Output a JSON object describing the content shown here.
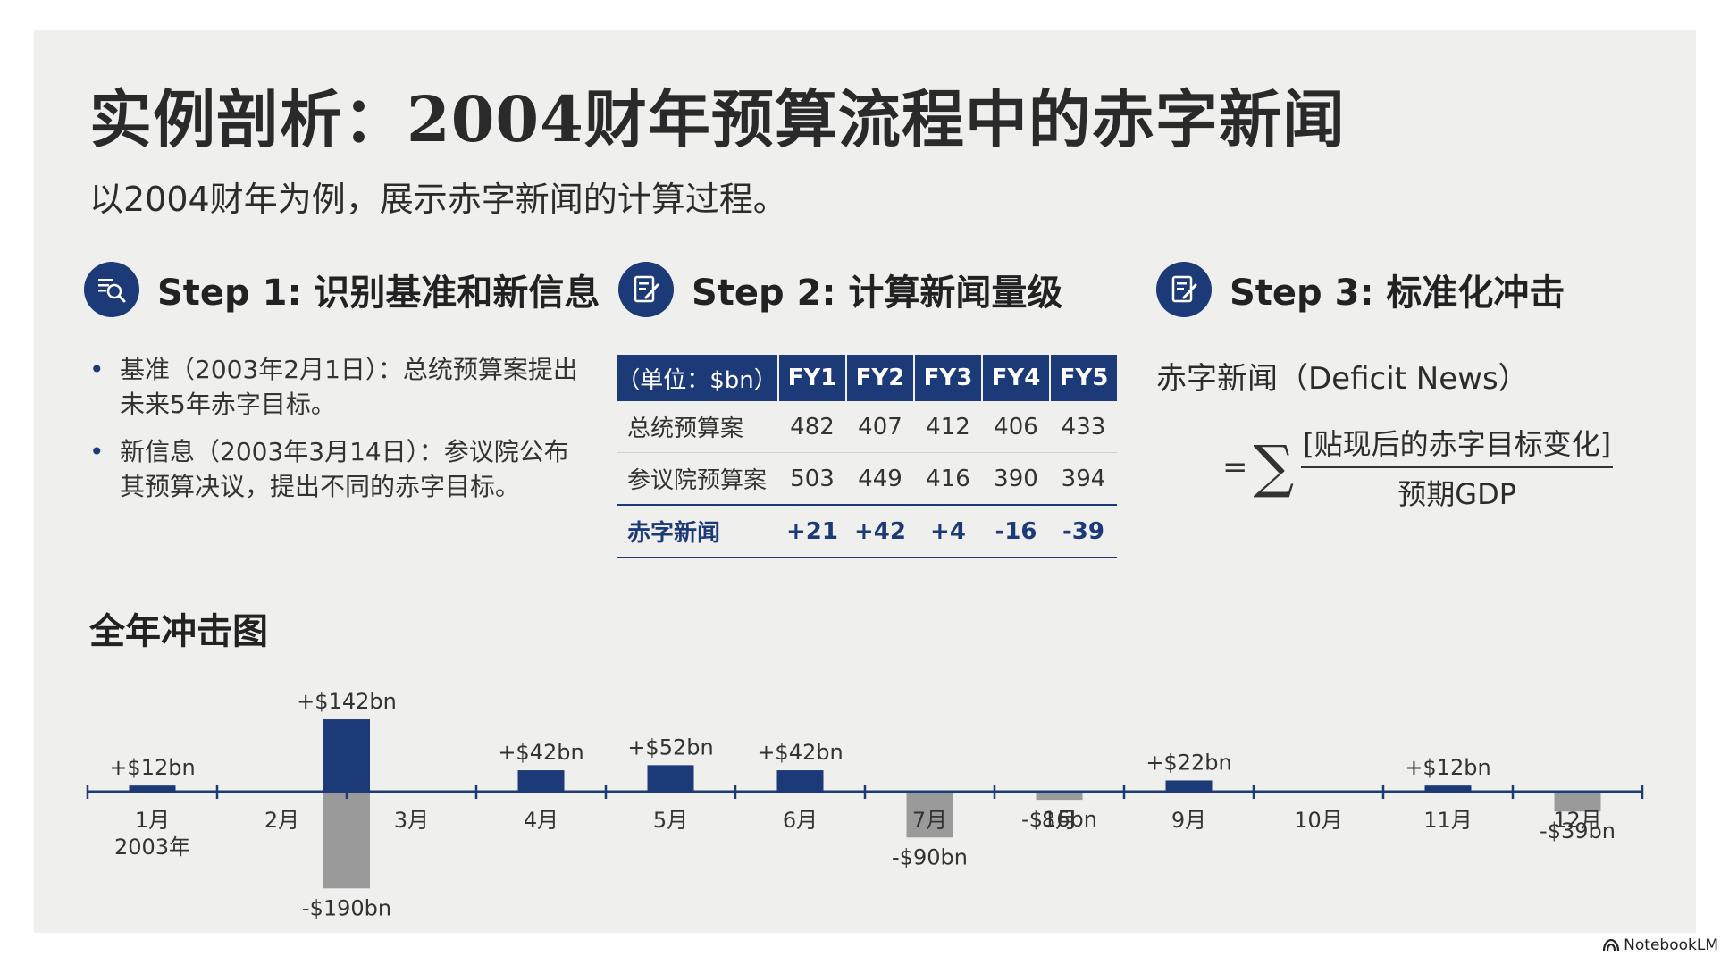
{
  "title": "实例剖析：2004财年预算流程中的赤字新闻",
  "subtitle": "以2004财年为例，展示赤字新闻的计算过程。",
  "steps": [
    {
      "label": "Step 1: 识别基准和新信息",
      "icon": "search-document-icon"
    },
    {
      "label": "Step 2: 计算新闻量级",
      "icon": "edit-document-icon"
    },
    {
      "label": "Step 3: 标准化冲击",
      "icon": "edit-document-icon"
    }
  ],
  "bullets": [
    "基准（2003年2月1日）：总统预算案提出未来5年赤字目标。",
    "新信息（2003年3月14日）：参议院公布其预算决议，提出不同的赤字目标。"
  ],
  "table": {
    "unit_header": "（单位：$bn）",
    "columns": [
      "FY1",
      "FY2",
      "FY3",
      "FY4",
      "FY5"
    ],
    "rows": [
      {
        "label": "总统预算案",
        "values": [
          "482",
          "407",
          "412",
          "406",
          "433"
        ]
      },
      {
        "label": "参议院预算案",
        "values": [
          "503",
          "449",
          "416",
          "390",
          "394"
        ]
      },
      {
        "label": "赤字新闻",
        "values": [
          "+21",
          "+42",
          "+4",
          "-16",
          "-39"
        ]
      }
    ]
  },
  "formula": {
    "label": "赤字新闻（Deficit News）",
    "equals": "=",
    "sigma": "∑",
    "numerator": "[贴现后的赤字目标变化]",
    "denominator": "预期GDP"
  },
  "chart_title": "全年冲击图",
  "chart_data": {
    "type": "bar",
    "title": "全年冲击图",
    "unit": "$bn",
    "year_label": "2003年",
    "categories": [
      "1月",
      "2月",
      "3月",
      "4月",
      "5月",
      "6月",
      "7月",
      "8月",
      "9月",
      "10月",
      "11月",
      "12月"
    ],
    "bars": [
      {
        "month_index": 0,
        "value": 12,
        "label": "+$12bn"
      },
      {
        "month_index": 1.5,
        "value": 142,
        "label": "+$142bn"
      },
      {
        "month_index": 1.5,
        "value": -190,
        "label": "-$190bn"
      },
      {
        "month_index": 3,
        "value": 42,
        "label": "+$42bn"
      },
      {
        "month_index": 4,
        "value": 52,
        "label": "+$52bn"
      },
      {
        "month_index": 5,
        "value": 42,
        "label": "+$42bn"
      },
      {
        "month_index": 6,
        "value": -90,
        "label": "-$90bn"
      },
      {
        "month_index": 7,
        "value": -16,
        "label": "-$16bn"
      },
      {
        "month_index": 8,
        "value": 22,
        "label": "+$22bn"
      },
      {
        "month_index": 10,
        "value": 12,
        "label": "+$12bn"
      },
      {
        "month_index": 11,
        "value": -39,
        "label": "-$39bn"
      }
    ],
    "colors": {
      "positive": "#1c3a78",
      "negative": "#9a9a9a",
      "axis": "#1c3a78"
    }
  },
  "brand": "NotebookLM"
}
